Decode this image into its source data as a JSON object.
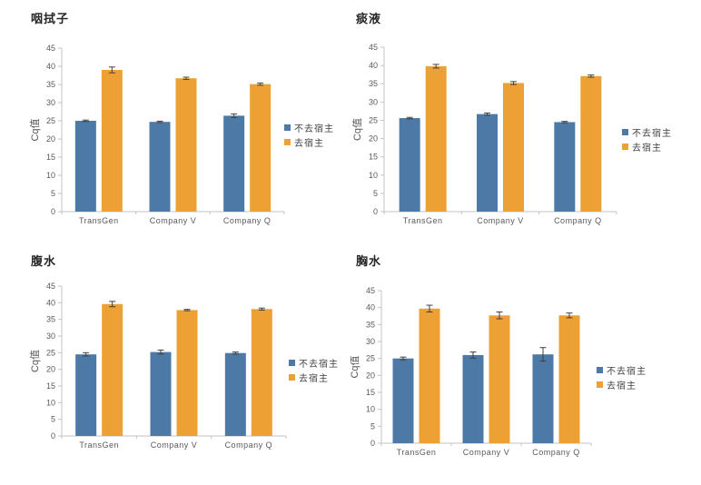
{
  "page": {
    "background": "#ffffff"
  },
  "colors": {
    "axis": "#c3c3c3",
    "tick_text": "#595959",
    "category_text": "#595959",
    "error_bar": "#404040",
    "title_text": "#262626",
    "legend_text": "#404040",
    "series1": "#4d79a6",
    "series2": "#eda033"
  },
  "chart_data": [
    {
      "type": "bar",
      "title": "咽拭子",
      "xlabel": "",
      "ylabel": "Cq值",
      "ylim": [
        0,
        45
      ],
      "ytick_step": 5,
      "grid": false,
      "legend_position": "right",
      "categories": [
        "TransGen",
        "Company V",
        "Company Q"
      ],
      "series": [
        {
          "name": "不去宿主",
          "color": "#4d79a6",
          "values": [
            25.0,
            24.7,
            26.4
          ],
          "errors": [
            0.2,
            0.2,
            0.5
          ]
        },
        {
          "name": "去宿主",
          "color": "#eda033",
          "values": [
            39.0,
            36.7,
            35.1
          ],
          "errors": [
            0.8,
            0.3,
            0.3
          ]
        }
      ]
    },
    {
      "type": "bar",
      "title": "痰液",
      "xlabel": "",
      "ylabel": "Cq值",
      "ylim": [
        0,
        45
      ],
      "ytick_step": 5,
      "grid": false,
      "legend_position": "right",
      "categories": [
        "TransGen",
        "Company V",
        "Company Q"
      ],
      "series": [
        {
          "name": "不去宿主",
          "color": "#4d79a6",
          "values": [
            25.6,
            26.7,
            24.5
          ],
          "errors": [
            0.2,
            0.3,
            0.2
          ]
        },
        {
          "name": "去宿主",
          "color": "#eda033",
          "values": [
            39.8,
            35.2,
            37.1
          ],
          "errors": [
            0.5,
            0.4,
            0.3
          ]
        }
      ]
    },
    {
      "type": "bar",
      "title": "腹水",
      "xlabel": "",
      "ylabel": "Cq值",
      "ylim": [
        0,
        45
      ],
      "ytick_step": 5,
      "grid": false,
      "legend_position": "right",
      "categories": [
        "TransGen",
        "Company V",
        "Company Q"
      ],
      "series": [
        {
          "name": "不去宿主",
          "color": "#4d79a6",
          "values": [
            24.5,
            25.2,
            24.9
          ],
          "errors": [
            0.5,
            0.6,
            0.3
          ]
        },
        {
          "name": "去宿主",
          "color": "#eda033",
          "values": [
            39.6,
            37.8,
            38.1
          ],
          "errors": [
            0.8,
            0.2,
            0.3
          ]
        }
      ]
    },
    {
      "type": "bar",
      "title": "胸水",
      "xlabel": "",
      "ylabel": "Cq值",
      "ylim": [
        0,
        45
      ],
      "ytick_step": 5,
      "grid": false,
      "legend_position": "right",
      "categories": [
        "TransGen",
        "Company V",
        "Company Q"
      ],
      "series": [
        {
          "name": "不去宿主",
          "color": "#4d79a6",
          "values": [
            25.0,
            26.0,
            26.2
          ],
          "errors": [
            0.4,
            0.9,
            2.0
          ]
        },
        {
          "name": "去宿主",
          "color": "#eda033",
          "values": [
            39.7,
            37.7,
            37.7
          ],
          "errors": [
            1.0,
            1.0,
            0.7
          ]
        }
      ]
    }
  ]
}
